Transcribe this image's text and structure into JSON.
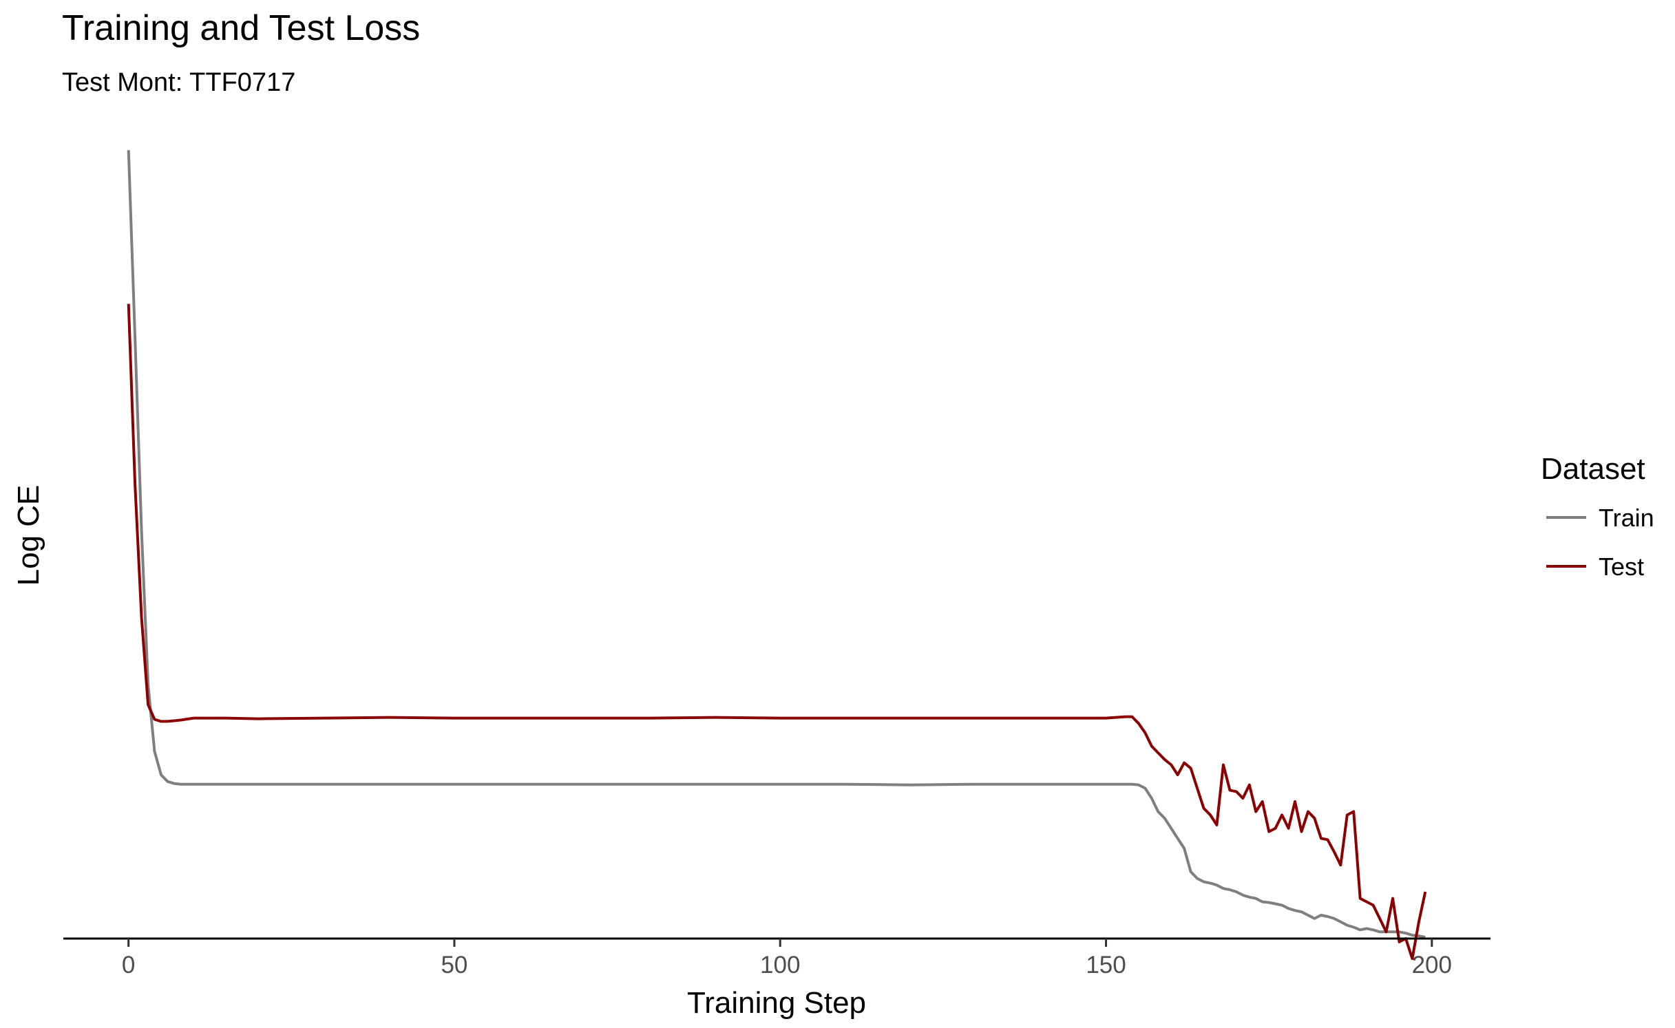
{
  "chart_data": {
    "type": "line",
    "title": "Training and Test Loss",
    "subtitle": "Test Mont: TTF0717",
    "xlabel": "Training Step",
    "ylabel": "Log CE",
    "xlim": [
      -10,
      209
    ],
    "ylim": [
      -0.06,
      1.18
    ],
    "x_ticks": [
      0,
      50,
      100,
      150,
      200
    ],
    "y_ticks_shown": false,
    "grid": false,
    "legend": {
      "title": "Dataset",
      "position": "right"
    },
    "series": [
      {
        "name": "Train",
        "color": "#7f7f7f",
        "x": [
          0,
          1,
          2,
          3,
          4,
          5,
          6,
          7,
          8,
          10,
          15,
          20,
          30,
          40,
          50,
          60,
          70,
          80,
          90,
          100,
          110,
          120,
          130,
          140,
          150,
          154,
          155,
          156,
          157,
          158,
          159,
          160,
          161,
          162,
          163,
          164,
          165,
          166,
          167,
          168,
          169,
          170,
          171,
          172,
          173,
          174,
          175,
          176,
          177,
          178,
          179,
          180,
          181,
          182,
          183,
          184,
          185,
          186,
          187,
          188,
          189,
          190,
          191,
          192,
          193,
          194,
          195,
          196,
          197,
          198,
          199
        ],
        "y": [
          1.12,
          0.84,
          0.55,
          0.32,
          0.22,
          0.185,
          0.175,
          0.172,
          0.171,
          0.171,
          0.171,
          0.171,
          0.171,
          0.171,
          0.171,
          0.171,
          0.171,
          0.171,
          0.171,
          0.171,
          0.171,
          0.17,
          0.171,
          0.171,
          0.171,
          0.171,
          0.17,
          0.165,
          0.15,
          0.13,
          0.12,
          0.105,
          0.09,
          0.075,
          0.04,
          0.03,
          0.025,
          0.023,
          0.02,
          0.015,
          0.013,
          0.01,
          0.005,
          0.002,
          0.0,
          -0.005,
          -0.006,
          -0.008,
          -0.01,
          -0.015,
          -0.018,
          -0.02,
          -0.025,
          -0.03,
          -0.025,
          -0.027,
          -0.03,
          -0.035,
          -0.04,
          -0.043,
          -0.047,
          -0.045,
          -0.047,
          -0.05,
          -0.05,
          -0.05,
          -0.05,
          -0.052,
          -0.055,
          -0.056,
          -0.058
        ]
      },
      {
        "name": "Test",
        "color": "#8b0000",
        "x": [
          0,
          1,
          2,
          3,
          4,
          5,
          6,
          8,
          10,
          15,
          20,
          30,
          40,
          50,
          60,
          70,
          80,
          90,
          100,
          110,
          120,
          130,
          140,
          150,
          153,
          154,
          155,
          156,
          157,
          158,
          159,
          160,
          161,
          162,
          163,
          164,
          165,
          166,
          167,
          168,
          169,
          170,
          171,
          172,
          173,
          174,
          175,
          176,
          177,
          178,
          179,
          180,
          181,
          182,
          183,
          184,
          185,
          186,
          187,
          188,
          189,
          190,
          191,
          192,
          193,
          194,
          195,
          196,
          197,
          198,
          199
        ],
        "y": [
          0.89,
          0.62,
          0.42,
          0.29,
          0.268,
          0.265,
          0.265,
          0.267,
          0.27,
          0.27,
          0.269,
          0.27,
          0.271,
          0.27,
          0.27,
          0.27,
          0.27,
          0.271,
          0.27,
          0.27,
          0.27,
          0.27,
          0.27,
          0.27,
          0.272,
          0.272,
          0.262,
          0.248,
          0.228,
          0.218,
          0.208,
          0.2,
          0.185,
          0.203,
          0.195,
          0.165,
          0.135,
          0.125,
          0.11,
          0.2,
          0.162,
          0.16,
          0.15,
          0.17,
          0.13,
          0.145,
          0.1,
          0.105,
          0.125,
          0.105,
          0.145,
          0.1,
          0.13,
          0.12,
          0.09,
          0.088,
          0.07,
          0.05,
          0.125,
          0.13,
          0.0,
          -0.005,
          -0.01,
          -0.03,
          -0.05,
          0.0,
          -0.065,
          -0.06,
          -0.09,
          -0.035,
          0.01
        ]
      }
    ]
  }
}
